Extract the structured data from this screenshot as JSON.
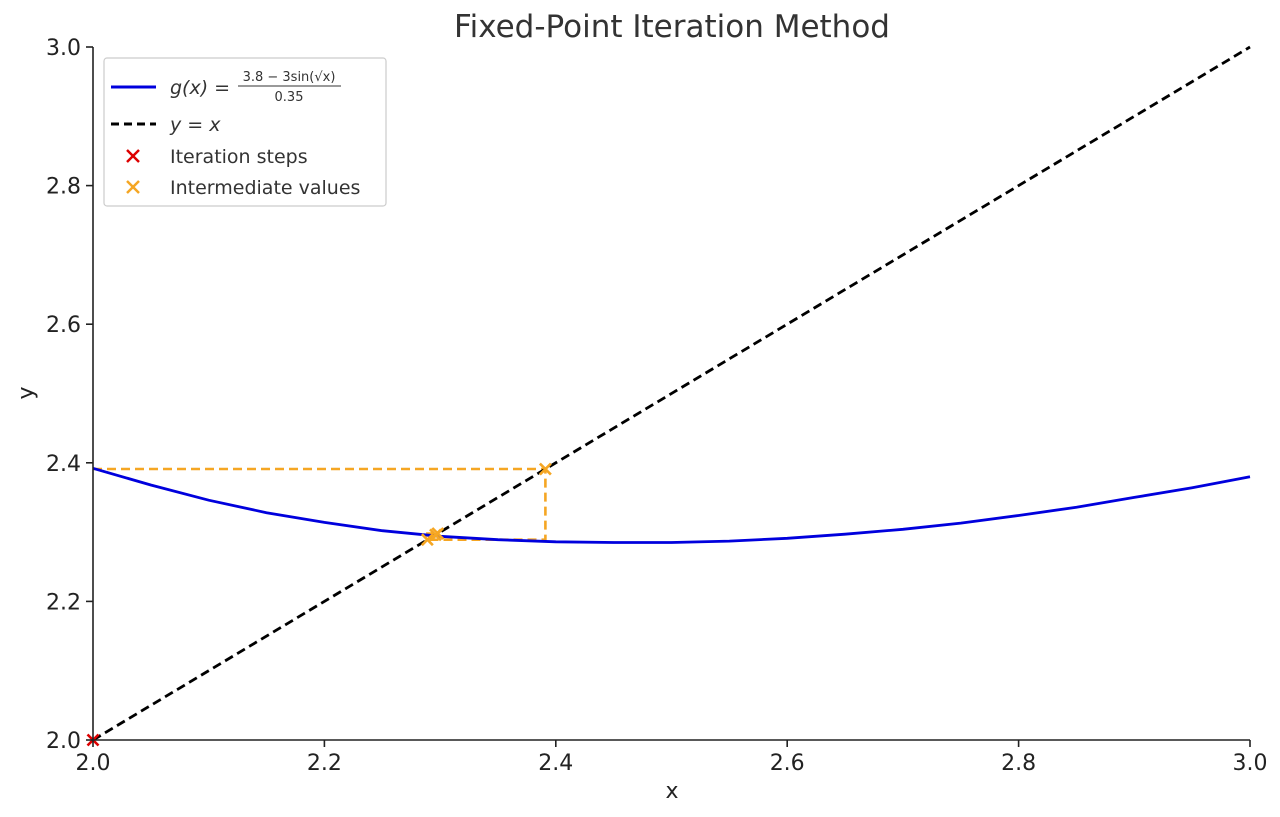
{
  "chart_data": {
    "type": "line",
    "title": "Fixed-Point Iteration Method",
    "xlabel": "x",
    "ylabel": "y",
    "xlim": [
      2.0,
      3.0
    ],
    "ylim": [
      2.0,
      3.0
    ],
    "xticks": [
      "2.0",
      "2.2",
      "2.4",
      "2.6",
      "2.8",
      "3.0"
    ],
    "yticks": [
      "2.0",
      "2.2",
      "2.4",
      "2.6",
      "2.8",
      "3.0"
    ],
    "grid": false,
    "legend_position": "top-left",
    "legend": {
      "g_prefix": "g(x) =",
      "g_numerator": "3.8 − 3sin(√x)",
      "g_denominator": "0.35",
      "identity": "y = x",
      "iteration_steps": "Iteration steps",
      "intermediate_values": "Intermediate values"
    },
    "series": [
      {
        "name": "g(x) = (3.8 − 3sin(√x))/0.35",
        "style": "solid",
        "color": "#0000dd",
        "x": [
          2.0,
          2.05,
          2.1,
          2.15,
          2.2,
          2.25,
          2.3,
          2.35,
          2.4,
          2.45,
          2.5,
          2.55,
          2.6,
          2.65,
          2.7,
          2.75,
          2.8,
          2.85,
          2.9,
          2.95,
          3.0
        ],
        "y": [
          2.392,
          2.368,
          2.346,
          2.328,
          2.314,
          2.302,
          2.294,
          2.289,
          2.286,
          2.285,
          2.285,
          2.287,
          2.291,
          2.297,
          2.304,
          2.313,
          2.324,
          2.336,
          2.35,
          2.364,
          2.38
        ]
      },
      {
        "name": "y = x",
        "style": "dashed",
        "color": "#000000",
        "x": [
          2.0,
          3.0
        ],
        "y": [
          2.0,
          3.0
        ]
      }
    ],
    "cobweb_path": {
      "color": "#f5a623",
      "x": [
        2.0,
        2.391,
        2.391,
        2.289,
        2.289,
        2.298
      ],
      "y": [
        2.391,
        2.391,
        2.289,
        2.289,
        2.298,
        2.298
      ]
    },
    "iteration_steps": {
      "color": "#dd0000",
      "x": [
        2.0
      ],
      "y": [
        2.0
      ]
    },
    "intermediate_values": {
      "color": "#f5a623",
      "x": [
        2.391,
        2.289,
        2.298,
        2.296
      ],
      "y": [
        2.391,
        2.289,
        2.298,
        2.296
      ]
    }
  }
}
